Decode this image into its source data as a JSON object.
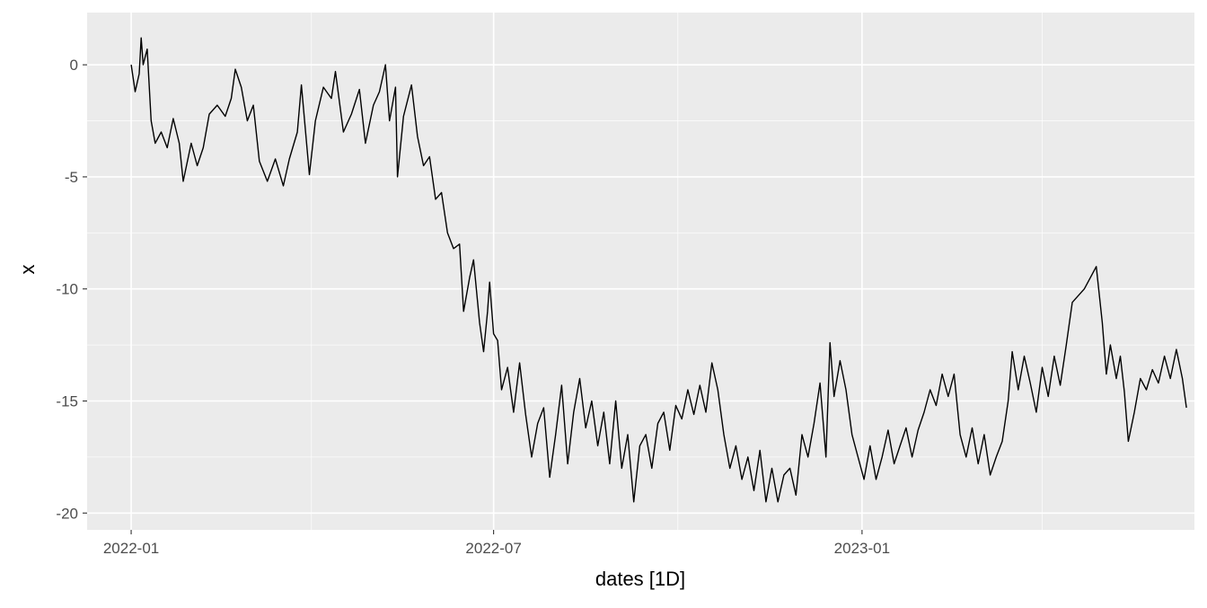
{
  "chart_data": {
    "type": "line",
    "title": "",
    "xlabel": "dates [1D]",
    "ylabel": "x",
    "x_type": "date",
    "xlim": [
      "2021-12-10",
      "2023-06-16"
    ],
    "ylim": [
      -20.75,
      2.33
    ],
    "x_ticks": [
      {
        "value": "2022-01-01",
        "label": "2022-01"
      },
      {
        "value": "2022-07-01",
        "label": "2022-07"
      },
      {
        "value": "2023-01-01",
        "label": "2023-01"
      }
    ],
    "x_minor_ticks": [
      "2022-04-01",
      "2022-10-01",
      "2023-04-01"
    ],
    "y_ticks": [
      0,
      -5,
      -10,
      -15,
      -20
    ],
    "y_tick_labels": [
      "0",
      "-5",
      "-10",
      "-15",
      "-20"
    ],
    "grid": true,
    "legend": "none",
    "colors": {
      "panel_background": "#ebebeb",
      "grid_major": "#ffffff",
      "line": "#000000",
      "tick_label": "#4d4d4d",
      "axis_title": "#000000"
    },
    "series": [
      {
        "points": [
          [
            "2022-01-01",
            0.0
          ],
          [
            "2022-01-03",
            -1.2
          ],
          [
            "2022-01-05",
            -0.4
          ],
          [
            "2022-01-06",
            1.2
          ],
          [
            "2022-01-07",
            0.0
          ],
          [
            "2022-01-09",
            0.7
          ],
          [
            "2022-01-11",
            -2.5
          ],
          [
            "2022-01-13",
            -3.5
          ],
          [
            "2022-01-16",
            -3.0
          ],
          [
            "2022-01-19",
            -3.7
          ],
          [
            "2022-01-22",
            -2.4
          ],
          [
            "2022-01-25",
            -3.5
          ],
          [
            "2022-01-27",
            -5.2
          ],
          [
            "2022-01-31",
            -3.5
          ],
          [
            "2022-02-03",
            -4.5
          ],
          [
            "2022-02-06",
            -3.7
          ],
          [
            "2022-02-09",
            -2.2
          ],
          [
            "2022-02-13",
            -1.8
          ],
          [
            "2022-02-17",
            -2.3
          ],
          [
            "2022-02-20",
            -1.5
          ],
          [
            "2022-02-22",
            -0.2
          ],
          [
            "2022-02-25",
            -1.0
          ],
          [
            "2022-02-28",
            -2.5
          ],
          [
            "2022-03-03",
            -1.8
          ],
          [
            "2022-03-06",
            -4.3
          ],
          [
            "2022-03-10",
            -5.2
          ],
          [
            "2022-03-14",
            -4.2
          ],
          [
            "2022-03-18",
            -5.4
          ],
          [
            "2022-03-21",
            -4.2
          ],
          [
            "2022-03-25",
            -3.0
          ],
          [
            "2022-03-27",
            -0.9
          ],
          [
            "2022-03-31",
            -4.9
          ],
          [
            "2022-04-03",
            -2.5
          ],
          [
            "2022-04-07",
            -1.0
          ],
          [
            "2022-04-11",
            -1.5
          ],
          [
            "2022-04-13",
            -0.3
          ],
          [
            "2022-04-17",
            -3.0
          ],
          [
            "2022-04-21",
            -2.2
          ],
          [
            "2022-04-25",
            -1.1
          ],
          [
            "2022-04-28",
            -3.5
          ],
          [
            "2022-05-02",
            -1.8
          ],
          [
            "2022-05-05",
            -1.2
          ],
          [
            "2022-05-08",
            0.0
          ],
          [
            "2022-05-10",
            -2.5
          ],
          [
            "2022-05-13",
            -1.0
          ],
          [
            "2022-05-14",
            -5.0
          ],
          [
            "2022-05-17",
            -2.3
          ],
          [
            "2022-05-21",
            -0.9
          ],
          [
            "2022-05-24",
            -3.2
          ],
          [
            "2022-05-27",
            -4.5
          ],
          [
            "2022-05-30",
            -4.1
          ],
          [
            "2022-06-02",
            -6.0
          ],
          [
            "2022-06-05",
            -5.7
          ],
          [
            "2022-06-08",
            -7.5
          ],
          [
            "2022-06-11",
            -8.2
          ],
          [
            "2022-06-14",
            -8.0
          ],
          [
            "2022-06-16",
            -11.0
          ],
          [
            "2022-06-19",
            -9.5
          ],
          [
            "2022-06-21",
            -8.7
          ],
          [
            "2022-06-24",
            -11.5
          ],
          [
            "2022-06-26",
            -12.8
          ],
          [
            "2022-06-28",
            -11.0
          ],
          [
            "2022-06-29",
            -9.7
          ],
          [
            "2022-07-01",
            -12.0
          ],
          [
            "2022-07-03",
            -12.3
          ],
          [
            "2022-07-05",
            -14.5
          ],
          [
            "2022-07-08",
            -13.5
          ],
          [
            "2022-07-11",
            -15.5
          ],
          [
            "2022-07-14",
            -13.3
          ],
          [
            "2022-07-17",
            -15.6
          ],
          [
            "2022-07-20",
            -17.5
          ],
          [
            "2022-07-23",
            -16.0
          ],
          [
            "2022-07-26",
            -15.3
          ],
          [
            "2022-07-29",
            -18.4
          ],
          [
            "2022-08-01",
            -16.5
          ],
          [
            "2022-08-04",
            -14.3
          ],
          [
            "2022-08-07",
            -17.8
          ],
          [
            "2022-08-10",
            -15.5
          ],
          [
            "2022-08-13",
            -14.0
          ],
          [
            "2022-08-16",
            -16.2
          ],
          [
            "2022-08-19",
            -15.0
          ],
          [
            "2022-08-22",
            -17.0
          ],
          [
            "2022-08-25",
            -15.5
          ],
          [
            "2022-08-28",
            -17.8
          ],
          [
            "2022-08-31",
            -15.0
          ],
          [
            "2022-09-03",
            -18.0
          ],
          [
            "2022-09-06",
            -16.5
          ],
          [
            "2022-09-09",
            -19.5
          ],
          [
            "2022-09-12",
            -17.0
          ],
          [
            "2022-09-15",
            -16.5
          ],
          [
            "2022-09-18",
            -18.0
          ],
          [
            "2022-09-21",
            -16.0
          ],
          [
            "2022-09-24",
            -15.5
          ],
          [
            "2022-09-27",
            -17.2
          ],
          [
            "2022-09-30",
            -15.2
          ],
          [
            "2022-10-03",
            -15.8
          ],
          [
            "2022-10-06",
            -14.5
          ],
          [
            "2022-10-09",
            -15.6
          ],
          [
            "2022-10-12",
            -14.3
          ],
          [
            "2022-10-15",
            -15.5
          ],
          [
            "2022-10-18",
            -13.3
          ],
          [
            "2022-10-21",
            -14.5
          ],
          [
            "2022-10-24",
            -16.5
          ],
          [
            "2022-10-27",
            -18.0
          ],
          [
            "2022-10-30",
            -17.0
          ],
          [
            "2022-11-02",
            -18.5
          ],
          [
            "2022-11-05",
            -17.5
          ],
          [
            "2022-11-08",
            -19.0
          ],
          [
            "2022-11-11",
            -17.2
          ],
          [
            "2022-11-14",
            -19.5
          ],
          [
            "2022-11-17",
            -18.0
          ],
          [
            "2022-11-20",
            -19.5
          ],
          [
            "2022-11-23",
            -18.3
          ],
          [
            "2022-11-26",
            -18.0
          ],
          [
            "2022-11-29",
            -19.2
          ],
          [
            "2022-12-02",
            -16.5
          ],
          [
            "2022-12-05",
            -17.5
          ],
          [
            "2022-12-08",
            -16.0
          ],
          [
            "2022-12-11",
            -14.2
          ],
          [
            "2022-12-14",
            -17.5
          ],
          [
            "2022-12-16",
            -12.4
          ],
          [
            "2022-12-18",
            -14.8
          ],
          [
            "2022-12-21",
            -13.2
          ],
          [
            "2022-12-24",
            -14.5
          ],
          [
            "2022-12-27",
            -16.5
          ],
          [
            "2022-12-30",
            -17.5
          ],
          [
            "2023-01-02",
            -18.5
          ],
          [
            "2023-01-05",
            -17.0
          ],
          [
            "2023-01-08",
            -18.5
          ],
          [
            "2023-01-11",
            -17.5
          ],
          [
            "2023-01-14",
            -16.3
          ],
          [
            "2023-01-17",
            -17.8
          ],
          [
            "2023-01-20",
            -17.0
          ],
          [
            "2023-01-23",
            -16.2
          ],
          [
            "2023-01-26",
            -17.5
          ],
          [
            "2023-01-29",
            -16.3
          ],
          [
            "2023-02-01",
            -15.5
          ],
          [
            "2023-02-04",
            -14.5
          ],
          [
            "2023-02-07",
            -15.2
          ],
          [
            "2023-02-10",
            -13.8
          ],
          [
            "2023-02-13",
            -14.8
          ],
          [
            "2023-02-16",
            -13.8
          ],
          [
            "2023-02-19",
            -16.5
          ],
          [
            "2023-02-22",
            -17.5
          ],
          [
            "2023-02-25",
            -16.2
          ],
          [
            "2023-02-28",
            -17.8
          ],
          [
            "2023-03-03",
            -16.5
          ],
          [
            "2023-03-06",
            -18.3
          ],
          [
            "2023-03-09",
            -17.5
          ],
          [
            "2023-03-12",
            -16.8
          ],
          [
            "2023-03-15",
            -15.0
          ],
          [
            "2023-03-17",
            -12.8
          ],
          [
            "2023-03-20",
            -14.5
          ],
          [
            "2023-03-23",
            -13.0
          ],
          [
            "2023-03-26",
            -14.2
          ],
          [
            "2023-03-29",
            -15.5
          ],
          [
            "2023-04-01",
            -13.5
          ],
          [
            "2023-04-04",
            -14.8
          ],
          [
            "2023-04-07",
            -13.0
          ],
          [
            "2023-04-10",
            -14.3
          ],
          [
            "2023-04-13",
            -12.5
          ],
          [
            "2023-04-16",
            -10.6
          ],
          [
            "2023-04-19",
            -10.3
          ],
          [
            "2023-04-22",
            -10.0
          ],
          [
            "2023-04-25",
            -9.5
          ],
          [
            "2023-04-28",
            -9.0
          ],
          [
            "2023-05-01",
            -11.5
          ],
          [
            "2023-05-03",
            -13.8
          ],
          [
            "2023-05-05",
            -12.5
          ],
          [
            "2023-05-08",
            -14.0
          ],
          [
            "2023-05-10",
            -13.0
          ],
          [
            "2023-05-12",
            -14.6
          ],
          [
            "2023-05-14",
            -16.8
          ],
          [
            "2023-05-17",
            -15.5
          ],
          [
            "2023-05-20",
            -14.0
          ],
          [
            "2023-05-23",
            -14.5
          ],
          [
            "2023-05-26",
            -13.6
          ],
          [
            "2023-05-29",
            -14.2
          ],
          [
            "2023-06-01",
            -13.0
          ],
          [
            "2023-06-04",
            -14.0
          ],
          [
            "2023-06-07",
            -12.7
          ],
          [
            "2023-06-10",
            -14.0
          ],
          [
            "2023-06-12",
            -15.3
          ]
        ]
      }
    ]
  }
}
